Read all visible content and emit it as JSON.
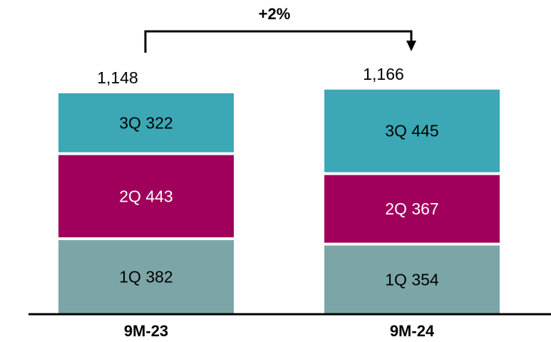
{
  "chart_data": {
    "type": "bar",
    "stacked": true,
    "categories": [
      "9M-23",
      "9M-24"
    ],
    "series": [
      {
        "name": "1Q",
        "values": [
          382,
          354
        ],
        "color": "#7BA5A6",
        "text_color": "#000000"
      },
      {
        "name": "2Q",
        "values": [
          443,
          367
        ],
        "color": "#A0005C",
        "text_color": "#ffffff"
      },
      {
        "name": "3Q",
        "values": [
          322,
          445
        ],
        "color": "#3CA7B5",
        "text_color": "#000000"
      }
    ],
    "totals": [
      "1,148",
      "1,166"
    ],
    "change_label": "+2%",
    "axis_color": "#000000"
  }
}
